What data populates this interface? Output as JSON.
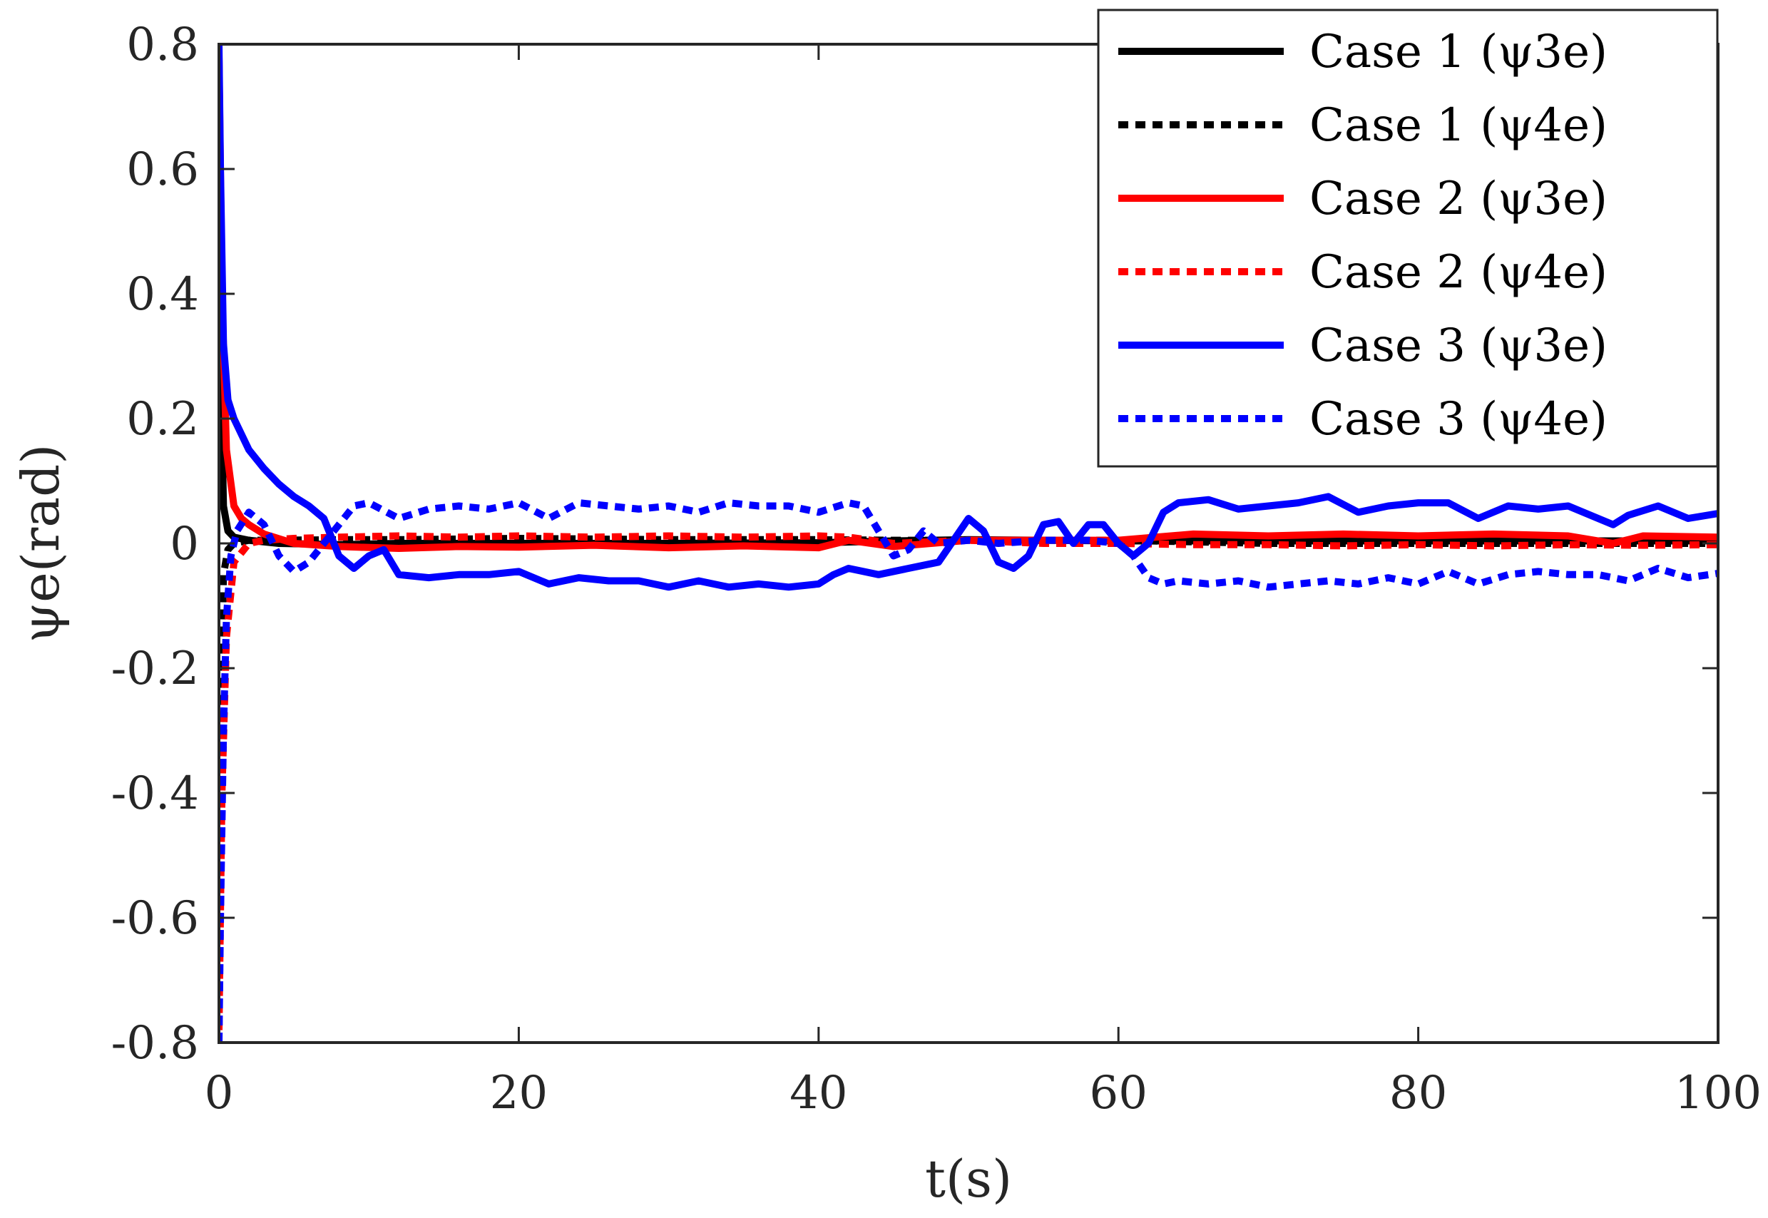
{
  "chart_data": {
    "type": "line",
    "xlabel": "t(s)",
    "ylabel": "ψe(rad)",
    "xlim": [
      0,
      100
    ],
    "ylim": [
      -0.8,
      0.8
    ],
    "x_ticks": [
      "0",
      "20",
      "40",
      "60",
      "80",
      "100"
    ],
    "y_ticks": [
      "-0.8",
      "-0.6",
      "-0.4",
      "-0.2",
      "0",
      "0.2",
      "0.4",
      "0.6",
      "0.8"
    ],
    "grid": false,
    "legend_position": "top-right",
    "series": [
      {
        "name": "Case 1 (ψ3e)",
        "color": "#000000",
        "style": "solid",
        "x": [
          0,
          0.1,
          0.3,
          0.6,
          1,
          2,
          4,
          8,
          12,
          20,
          30,
          40,
          45,
          50,
          55,
          60,
          70,
          80,
          90,
          100
        ],
        "y": [
          0.78,
          0.3,
          0.06,
          0.02,
          0.01,
          0.005,
          0.0,
          -0.002,
          0.0,
          0.0,
          0.0,
          0.001,
          0.004,
          0.006,
          0.005,
          0.004,
          0.004,
          0.004,
          0.004,
          0.004
        ]
      },
      {
        "name": "Case 1 (ψ4e)",
        "color": "#000000",
        "style": "dotted",
        "x": [
          0,
          0.1,
          0.3,
          0.6,
          1,
          2,
          4,
          8,
          12,
          20,
          30,
          40,
          45,
          50,
          55,
          60,
          70,
          80,
          90,
          100
        ],
        "y": [
          -0.78,
          -0.3,
          -0.05,
          -0.01,
          0.0,
          0.005,
          0.005,
          0.006,
          0.006,
          0.008,
          0.006,
          0.006,
          0.005,
          0.005,
          0.005,
          0.005,
          0.0,
          0.0,
          0.0,
          0.0
        ]
      },
      {
        "name": "Case 2 (ψ3e)",
        "color": "#ff0000",
        "style": "solid",
        "x": [
          0,
          0.2,
          0.5,
          1,
          1.5,
          2,
          3,
          5,
          8,
          12,
          16,
          20,
          25,
          30,
          35,
          40,
          42,
          45,
          50,
          55,
          60,
          65,
          70,
          75,
          80,
          85,
          90,
          93,
          95,
          100
        ],
        "y": [
          0.78,
          0.4,
          0.15,
          0.06,
          0.04,
          0.03,
          0.015,
          0.0,
          -0.005,
          -0.008,
          -0.005,
          -0.006,
          -0.003,
          -0.007,
          -0.004,
          -0.007,
          0.005,
          -0.005,
          0.005,
          0.005,
          0.005,
          0.015,
          0.012,
          0.015,
          0.012,
          0.015,
          0.012,
          0.0,
          0.012,
          0.01
        ]
      },
      {
        "name": "Case 2 (ψ4e)",
        "color": "#ff0000",
        "style": "dotted",
        "x": [
          0,
          0.2,
          0.5,
          1,
          2,
          3,
          5,
          8,
          12,
          16,
          20,
          25,
          30,
          35,
          40,
          42,
          45,
          50,
          55,
          60,
          65,
          70,
          75,
          80,
          85,
          90,
          95,
          100
        ],
        "y": [
          -0.78,
          -0.4,
          -0.15,
          -0.03,
          0.0,
          0.005,
          0.008,
          0.01,
          0.012,
          0.01,
          0.012,
          0.01,
          0.012,
          0.01,
          0.012,
          0.01,
          0.0,
          0.005,
          0.0,
          0.0,
          -0.002,
          -0.002,
          -0.004,
          -0.002,
          -0.004,
          -0.002,
          -0.003,
          -0.002
        ]
      },
      {
        "name": "Case 3 (ψ3e)",
        "color": "#0000ff",
        "style": "solid",
        "x": [
          0,
          0.1,
          0.3,
          0.6,
          1,
          2,
          3,
          4,
          5,
          6,
          7,
          8,
          9,
          10,
          11,
          12,
          14,
          16,
          18,
          20,
          22,
          24,
          26,
          28,
          30,
          32,
          34,
          36,
          38,
          40,
          41,
          42,
          44,
          46,
          48,
          50,
          51,
          52,
          53,
          54,
          55,
          56,
          57,
          58,
          59,
          60,
          61,
          62,
          63,
          64,
          66,
          68,
          70,
          72,
          74,
          76,
          78,
          80,
          82,
          84,
          86,
          88,
          90,
          92,
          93,
          94,
          96,
          98,
          100
        ],
        "y": [
          0.8,
          0.6,
          0.32,
          0.23,
          0.2,
          0.15,
          0.12,
          0.095,
          0.075,
          0.06,
          0.04,
          -0.02,
          -0.04,
          -0.02,
          -0.01,
          -0.05,
          -0.055,
          -0.05,
          -0.05,
          -0.045,
          -0.065,
          -0.055,
          -0.06,
          -0.06,
          -0.07,
          -0.06,
          -0.07,
          -0.065,
          -0.07,
          -0.065,
          -0.05,
          -0.04,
          -0.05,
          -0.04,
          -0.03,
          0.04,
          0.02,
          -0.03,
          -0.04,
          -0.02,
          0.03,
          0.035,
          0.0,
          0.03,
          0.03,
          0.0,
          -0.02,
          0.0,
          0.05,
          0.065,
          0.07,
          0.055,
          0.06,
          0.065,
          0.075,
          0.05,
          0.06,
          0.065,
          0.065,
          0.04,
          0.06,
          0.055,
          0.06,
          0.04,
          0.03,
          0.045,
          0.06,
          0.04,
          0.048
        ]
      },
      {
        "name": "Case 3 (ψ4e)",
        "color": "#0000ff",
        "style": "dotted",
        "x": [
          0,
          0.1,
          0.3,
          0.5,
          0.8,
          1.2,
          2,
          3,
          4,
          5,
          6,
          7,
          8,
          9,
          10,
          12,
          14,
          16,
          18,
          20,
          22,
          24,
          26,
          28,
          30,
          32,
          34,
          36,
          38,
          40,
          42,
          43,
          44,
          45,
          46,
          47,
          48,
          50,
          52,
          55,
          58,
          60,
          61,
          62,
          63,
          64,
          66,
          68,
          70,
          72,
          74,
          76,
          78,
          80,
          82,
          84,
          86,
          88,
          90,
          92,
          94,
          96,
          98,
          100
        ],
        "y": [
          -0.8,
          -0.6,
          -0.3,
          -0.12,
          -0.02,
          0.02,
          0.05,
          0.03,
          -0.02,
          -0.045,
          -0.03,
          0.0,
          0.03,
          0.06,
          0.065,
          0.04,
          0.055,
          0.06,
          0.055,
          0.065,
          0.04,
          0.065,
          0.06,
          0.055,
          0.06,
          0.05,
          0.065,
          0.06,
          0.06,
          0.05,
          0.065,
          0.06,
          0.02,
          -0.02,
          -0.01,
          0.02,
          0.0,
          0.005,
          0.0,
          0.005,
          0.005,
          0.0,
          -0.02,
          -0.055,
          -0.065,
          -0.06,
          -0.065,
          -0.06,
          -0.07,
          -0.065,
          -0.06,
          -0.065,
          -0.055,
          -0.065,
          -0.045,
          -0.065,
          -0.05,
          -0.045,
          -0.05,
          -0.05,
          -0.06,
          -0.04,
          -0.055,
          -0.048
        ]
      }
    ]
  }
}
